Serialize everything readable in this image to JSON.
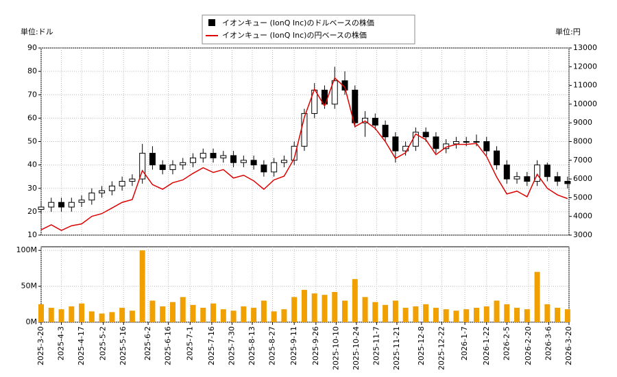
{
  "chart_data": {
    "type": "candlestick",
    "candle_name": "イオンキュー (IonQ Inc)のドルベースの株価",
    "y_unit": "単位:ドル",
    "y2_unit": "単位:円",
    "x": [
      "2025-3-20",
      "2025-3-27",
      "2025-4-3",
      "2025-4-10",
      "2025-4-17",
      "2025-4-24",
      "2025-5-1",
      "2025-5-8",
      "2025-5-15",
      "2025-5-22",
      "2025-5-29",
      "2025-6-5",
      "2025-6-12",
      "2025-6-19",
      "2025-6-26",
      "2025-7-3",
      "2025-7-10",
      "2025-7-17",
      "2025-7-24",
      "2025-7-31",
      "2025-8-7",
      "2025-8-14",
      "2025-8-21",
      "2025-8-28",
      "2025-9-4",
      "2025-9-11",
      "2025-9-18",
      "2025-9-25",
      "2025-10-2",
      "2025-10-9",
      "2025-10-16",
      "2025-10-23",
      "2025-10-30",
      "2025-11-6",
      "2025-11-13",
      "2025-11-20",
      "2025-11-27",
      "2025-12-4",
      "2025-12-11",
      "2025-12-18",
      "2025-12-25",
      "2026-1-1",
      "2026-1-8",
      "2026-1-15",
      "2026-1-22",
      "2026-1-29",
      "2026-2-5",
      "2026-2-12",
      "2026-2-19",
      "2026-2-26",
      "2026-3-5",
      "2026-3-12",
      "2026-3-19"
    ],
    "open": [
      21,
      22,
      24,
      22,
      24,
      25,
      28,
      29,
      31,
      33,
      34,
      45,
      40,
      38,
      40,
      41,
      43,
      45,
      43,
      44,
      41,
      42,
      40,
      37,
      41,
      42,
      48,
      62,
      72,
      66,
      76,
      72,
      58,
      60,
      57,
      52,
      46,
      48,
      54,
      52,
      47,
      49,
      50,
      50,
      50,
      46,
      40,
      34,
      35,
      33,
      40,
      35,
      33
    ],
    "high": [
      24,
      26,
      26,
      26,
      27,
      30,
      31,
      33,
      35,
      36,
      49,
      48,
      42,
      42,
      43,
      45,
      47,
      47,
      46,
      46,
      44,
      44,
      42,
      43,
      44,
      50,
      64,
      75,
      74,
      82,
      80,
      74,
      63,
      62,
      59,
      54,
      50,
      56,
      56,
      54,
      51,
      52,
      52,
      53,
      52,
      48,
      42,
      37,
      37,
      42,
      41,
      37,
      35
    ],
    "low": [
      19,
      20,
      20,
      20,
      22,
      23,
      26,
      27,
      29,
      31,
      32,
      38,
      36,
      36,
      38,
      39,
      41,
      41,
      41,
      39,
      39,
      38,
      35,
      35,
      39,
      40,
      46,
      60,
      64,
      64,
      70,
      56,
      52,
      55,
      50,
      41,
      44,
      46,
      50,
      45,
      45,
      47,
      48,
      48,
      44,
      38,
      32,
      32,
      31,
      31,
      33,
      31,
      30
    ],
    "close": [
      22,
      24,
      22,
      24,
      25,
      28,
      29,
      31,
      33,
      34,
      45,
      40,
      38,
      40,
      41,
      43,
      45,
      43,
      44,
      41,
      42,
      40,
      37,
      41,
      42,
      48,
      62,
      72,
      66,
      76,
      72,
      58,
      60,
      57,
      52,
      46,
      48,
      54,
      52,
      47,
      49,
      50,
      50,
      50,
      46,
      40,
      34,
      35,
      33,
      40,
      35,
      33,
      32
    ],
    "up_color": "#ffffff",
    "down_color": "#000000",
    "series": [
      {
        "name": "イオンキュー (IonQ Inc)の円ベースの株価",
        "color": "#dd0000",
        "axis": "y2",
        "values": [
          3280,
          3550,
          3250,
          3500,
          3600,
          4000,
          4150,
          4450,
          4750,
          4900,
          6450,
          5700,
          5450,
          5800,
          5950,
          6300,
          6600,
          6350,
          6500,
          6050,
          6200,
          5900,
          5450,
          5950,
          6150,
          7100,
          9300,
          10800,
          9900,
          11400,
          10900,
          8800,
          9100,
          8700,
          8000,
          7100,
          7400,
          8400,
          8100,
          7300,
          7700,
          7850,
          7850,
          7900,
          7200,
          6100,
          5200,
          5350,
          5050,
          6250,
          5500,
          5150,
          4950
        ]
      }
    ],
    "xlim": [
      "2025-3-20",
      "2026-3-20"
    ],
    "xticks": [
      "2025-3-20",
      "2025-4-3",
      "2025-4-17",
      "2025-5-2",
      "2025-5-16",
      "2025-6-2",
      "2025-6-16",
      "2025-7-1",
      "2025-7-16",
      "2025-7-30",
      "2025-8-13",
      "2025-8-27",
      "2025-9-11",
      "2025-9-26",
      "2025-10-10",
      "2025-10-24",
      "2025-11-7",
      "2025-11-21",
      "2025-12-8",
      "2025-12-22",
      "2026-1-7",
      "2026-1-22",
      "2026-2-5",
      "2026-2-20",
      "2026-3-6",
      "2026-3-20"
    ],
    "ylim": [
      10,
      90
    ],
    "yticks": [
      10,
      20,
      30,
      40,
      50,
      60,
      70,
      80,
      90
    ],
    "y2lim": [
      3000,
      13000
    ],
    "y2ticks": [
      3000,
      4000,
      5000,
      6000,
      7000,
      8000,
      9000,
      10000,
      11000,
      12000,
      13000
    ],
    "volume": {
      "color": "#f0a000",
      "ylim": [
        0,
        105000000
      ],
      "yticks": [
        {
          "value": 0,
          "label": "0M"
        },
        {
          "value": 50000000,
          "label": "50M"
        },
        {
          "value": 100000000,
          "label": "100M"
        }
      ],
      "values": [
        25000000,
        20000000,
        18000000,
        22000000,
        26000000,
        15000000,
        12000000,
        14000000,
        20000000,
        16000000,
        100000000,
        30000000,
        22000000,
        28000000,
        35000000,
        24000000,
        20000000,
        26000000,
        18000000,
        16000000,
        22000000,
        20000000,
        30000000,
        15000000,
        18000000,
        35000000,
        45000000,
        40000000,
        38000000,
        42000000,
        30000000,
        60000000,
        35000000,
        28000000,
        24000000,
        30000000,
        20000000,
        22000000,
        25000000,
        20000000,
        18000000,
        16000000,
        18000000,
        20000000,
        22000000,
        30000000,
        25000000,
        20000000,
        18000000,
        70000000,
        25000000,
        20000000,
        18000000
      ]
    },
    "grid": true,
    "legend": "top"
  }
}
